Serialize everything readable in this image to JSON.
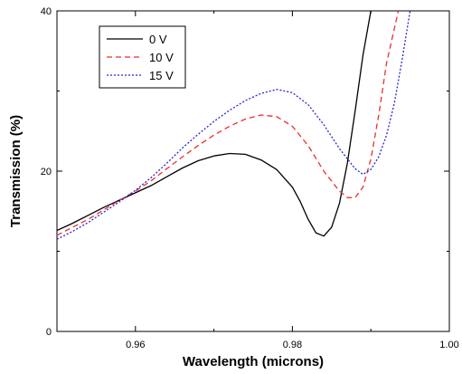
{
  "chart_data": {
    "type": "line",
    "title": "",
    "xlabel": "Wavelength (microns)",
    "ylabel": "Transmission (%)",
    "xlim": [
      0.95,
      1.0
    ],
    "ylim": [
      0,
      40
    ],
    "x_ticks": [
      0.96,
      0.98,
      1.0
    ],
    "x_tick_labels": [
      "0.96",
      "0.98",
      "1.00"
    ],
    "y_ticks": [
      0,
      20,
      40
    ],
    "y_tick_labels": [
      "0",
      "20",
      "40"
    ],
    "grid": false,
    "legend_position": "top-left",
    "series": [
      {
        "name": "0 V",
        "color": "#000000",
        "dash": "solid",
        "points": [
          [
            0.95,
            12.6
          ],
          [
            0.952,
            13.5
          ],
          [
            0.954,
            14.5
          ],
          [
            0.956,
            15.5
          ],
          [
            0.958,
            16.4
          ],
          [
            0.96,
            17.3
          ],
          [
            0.962,
            18.2
          ],
          [
            0.964,
            19.3
          ],
          [
            0.966,
            20.4
          ],
          [
            0.968,
            21.3
          ],
          [
            0.97,
            21.9
          ],
          [
            0.972,
            22.2
          ],
          [
            0.974,
            22.1
          ],
          [
            0.976,
            21.4
          ],
          [
            0.978,
            20.2
          ],
          [
            0.98,
            18.0
          ],
          [
            0.981,
            16.2
          ],
          [
            0.982,
            14.0
          ],
          [
            0.983,
            12.3
          ],
          [
            0.984,
            11.9
          ],
          [
            0.985,
            13.0
          ],
          [
            0.986,
            16.0
          ],
          [
            0.987,
            21.0
          ],
          [
            0.988,
            27.5
          ],
          [
            0.989,
            34.5
          ],
          [
            0.99,
            40.0
          ]
        ]
      },
      {
        "name": "10 V",
        "color": "#e8302a",
        "dash": "dashed",
        "points": [
          [
            0.95,
            12.0
          ],
          [
            0.952,
            13.0
          ],
          [
            0.954,
            14.0
          ],
          [
            0.956,
            15.2
          ],
          [
            0.958,
            16.4
          ],
          [
            0.96,
            17.5
          ],
          [
            0.962,
            18.8
          ],
          [
            0.964,
            20.3
          ],
          [
            0.966,
            21.8
          ],
          [
            0.968,
            23.2
          ],
          [
            0.97,
            24.5
          ],
          [
            0.972,
            25.6
          ],
          [
            0.974,
            26.5
          ],
          [
            0.976,
            27.0
          ],
          [
            0.978,
            26.8
          ],
          [
            0.98,
            25.6
          ],
          [
            0.982,
            23.2
          ],
          [
            0.984,
            20.0
          ],
          [
            0.986,
            17.5
          ],
          [
            0.987,
            16.7
          ],
          [
            0.988,
            16.7
          ],
          [
            0.989,
            18.0
          ],
          [
            0.99,
            21.5
          ],
          [
            0.991,
            27.0
          ],
          [
            0.992,
            33.5
          ],
          [
            0.9935,
            40.0
          ]
        ]
      },
      {
        "name": "15 V",
        "color": "#2424d8",
        "dash": "dotted",
        "points": [
          [
            0.95,
            11.5
          ],
          [
            0.952,
            12.5
          ],
          [
            0.954,
            13.6
          ],
          [
            0.956,
            14.9
          ],
          [
            0.958,
            16.2
          ],
          [
            0.96,
            17.6
          ],
          [
            0.962,
            19.2
          ],
          [
            0.964,
            21.0
          ],
          [
            0.966,
            22.9
          ],
          [
            0.968,
            24.6
          ],
          [
            0.97,
            26.2
          ],
          [
            0.972,
            27.6
          ],
          [
            0.974,
            28.8
          ],
          [
            0.976,
            29.7
          ],
          [
            0.978,
            30.2
          ],
          [
            0.98,
            29.8
          ],
          [
            0.982,
            28.3
          ],
          [
            0.984,
            25.8
          ],
          [
            0.986,
            22.8
          ],
          [
            0.988,
            20.3
          ],
          [
            0.989,
            19.6
          ],
          [
            0.99,
            20.2
          ],
          [
            0.991,
            21.8
          ],
          [
            0.992,
            24.5
          ],
          [
            0.993,
            28.5
          ],
          [
            0.994,
            34.0
          ],
          [
            0.995,
            40.0
          ]
        ]
      }
    ]
  }
}
